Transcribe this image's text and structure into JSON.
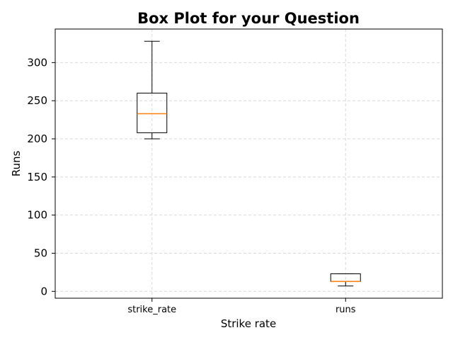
{
  "chart_data": {
    "type": "box",
    "title": "Box Plot for your Question",
    "xlabel": "Strike rate",
    "ylabel": "Runs",
    "categories": [
      "strike_rate",
      "runs"
    ],
    "ylim": [
      -9,
      344
    ],
    "y_ticks": [
      0,
      50,
      100,
      150,
      200,
      250,
      300
    ],
    "y_tick_labels": [
      "0",
      "50",
      "100",
      "150",
      "200",
      "250",
      "300"
    ],
    "grid": true,
    "grid_style": "dashed",
    "series": [
      {
        "category": "strike_rate",
        "whisker_low": 200,
        "q1": 208,
        "median": 233,
        "q3": 260,
        "whisker_high": 328
      },
      {
        "category": "runs",
        "whisker_low": 7,
        "q1": 13,
        "median": 13,
        "q3": 23,
        "whisker_high": 23
      }
    ],
    "colors": {
      "box": "#000000",
      "median": "#ff7f0e",
      "grid": "#d9d9d9",
      "axes": "#000000"
    }
  }
}
